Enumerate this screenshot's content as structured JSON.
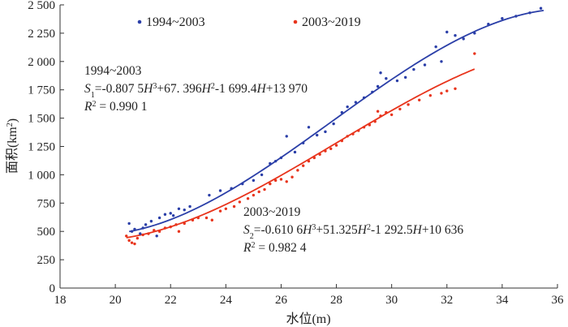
{
  "chart_data": {
    "type": "scatter",
    "xlabel": "水位(m)",
    "ylabel_main": "面积(km",
    "ylabel_sup": "2",
    "ylabel_close": ")",
    "xlim": [
      18,
      36
    ],
    "ylim": [
      0,
      2500
    ],
    "xticks": [
      18,
      20,
      22,
      24,
      26,
      28,
      30,
      32,
      34,
      36
    ],
    "yticks": [
      0,
      250,
      500,
      750,
      1000,
      1250,
      1500,
      1750,
      2000,
      2250,
      2500
    ],
    "ytick_labels": [
      "0",
      "250",
      "500",
      "750",
      "1 000",
      "1 250",
      "1 500",
      "1 750",
      "2 000",
      "2 250",
      "2 500"
    ],
    "grid": false,
    "legend_position": "top",
    "series": [
      {
        "name": "1994~2003",
        "color": "#2b3fa8",
        "marker": "dot",
        "fit_coefficients": [
          -0.8075,
          67.396,
          -1699.4,
          13970
        ],
        "fit_range": [
          20.5,
          35.5
        ],
        "points": [
          [
            20.5,
            570
          ],
          [
            20.6,
            500
          ],
          [
            20.7,
            520
          ],
          [
            20.9,
            480
          ],
          [
            21.0,
            530
          ],
          [
            21.1,
            560
          ],
          [
            21.3,
            590
          ],
          [
            21.5,
            460
          ],
          [
            21.6,
            620
          ],
          [
            21.8,
            650
          ],
          [
            22.0,
            660
          ],
          [
            22.1,
            640
          ],
          [
            22.3,
            700
          ],
          [
            22.5,
            690
          ],
          [
            22.7,
            720
          ],
          [
            23.4,
            820
          ],
          [
            23.8,
            860
          ],
          [
            24.2,
            880
          ],
          [
            24.6,
            920
          ],
          [
            25.0,
            950
          ],
          [
            25.3,
            1000
          ],
          [
            25.6,
            1100
          ],
          [
            25.8,
            1120
          ],
          [
            26.0,
            1150
          ],
          [
            26.2,
            1340
          ],
          [
            26.5,
            1200
          ],
          [
            26.8,
            1280
          ],
          [
            27.0,
            1420
          ],
          [
            27.3,
            1350
          ],
          [
            27.6,
            1380
          ],
          [
            27.9,
            1450
          ],
          [
            28.2,
            1550
          ],
          [
            28.4,
            1600
          ],
          [
            28.7,
            1640
          ],
          [
            29.0,
            1680
          ],
          [
            29.3,
            1730
          ],
          [
            29.5,
            1780
          ],
          [
            29.6,
            1900
          ],
          [
            29.8,
            1850
          ],
          [
            30.2,
            1830
          ],
          [
            30.5,
            1860
          ],
          [
            30.8,
            1930
          ],
          [
            31.2,
            1970
          ],
          [
            31.6,
            2130
          ],
          [
            31.8,
            2000
          ],
          [
            32.0,
            2260
          ],
          [
            32.3,
            2230
          ],
          [
            32.6,
            2200
          ],
          [
            33.0,
            2250
          ],
          [
            33.5,
            2330
          ],
          [
            34.0,
            2380
          ],
          [
            34.5,
            2400
          ],
          [
            35.0,
            2430
          ],
          [
            35.4,
            2470
          ]
        ]
      },
      {
        "name": "2003~2019",
        "color": "#e8341c",
        "marker": "dot",
        "fit_coefficients": [
          -0.6106,
          51.325,
          -1292.5,
          10636
        ],
        "fit_range": [
          20.4,
          33.0
        ],
        "points": [
          [
            20.4,
            460
          ],
          [
            20.5,
            420
          ],
          [
            20.6,
            400
          ],
          [
            20.7,
            390
          ],
          [
            20.8,
            440
          ],
          [
            21.0,
            470
          ],
          [
            21.2,
            480
          ],
          [
            21.4,
            510
          ],
          [
            21.6,
            500
          ],
          [
            21.8,
            530
          ],
          [
            22.0,
            540
          ],
          [
            22.2,
            560
          ],
          [
            22.3,
            500
          ],
          [
            22.5,
            570
          ],
          [
            22.8,
            600
          ],
          [
            23.0,
            620
          ],
          [
            23.3,
            620
          ],
          [
            23.5,
            600
          ],
          [
            23.8,
            680
          ],
          [
            24.0,
            700
          ],
          [
            24.3,
            720
          ],
          [
            24.5,
            760
          ],
          [
            24.8,
            790
          ],
          [
            25.0,
            820
          ],
          [
            25.2,
            850
          ],
          [
            25.4,
            870
          ],
          [
            25.6,
            920
          ],
          [
            25.8,
            950
          ],
          [
            26.0,
            960
          ],
          [
            26.2,
            940
          ],
          [
            26.4,
            980
          ],
          [
            26.6,
            1040
          ],
          [
            26.8,
            1080
          ],
          [
            27.0,
            1120
          ],
          [
            27.2,
            1150
          ],
          [
            27.4,
            1180
          ],
          [
            27.6,
            1210
          ],
          [
            27.8,
            1230
          ],
          [
            28.0,
            1260
          ],
          [
            28.2,
            1300
          ],
          [
            28.4,
            1340
          ],
          [
            28.6,
            1360
          ],
          [
            28.8,
            1390
          ],
          [
            29.0,
            1420
          ],
          [
            29.2,
            1440
          ],
          [
            29.4,
            1470
          ],
          [
            29.5,
            1560
          ],
          [
            29.6,
            1520
          ],
          [
            29.8,
            1550
          ],
          [
            30.0,
            1530
          ],
          [
            30.3,
            1580
          ],
          [
            30.6,
            1620
          ],
          [
            31.0,
            1660
          ],
          [
            31.4,
            1700
          ],
          [
            31.8,
            1720
          ],
          [
            32.0,
            1740
          ],
          [
            32.3,
            1760
          ],
          [
            33.0,
            2070
          ]
        ]
      }
    ],
    "legend": [
      {
        "label": "1994~2003",
        "color": "#2b3fa8"
      },
      {
        "label": "2003~2019",
        "color": "#e8341c"
      }
    ],
    "annotations": {
      "eq1": {
        "period": "1994~2003",
        "s_var": "S",
        "s_sub": "1",
        "eq_part1": "=-0.807 5",
        "h1": "H",
        "pow1": "3",
        "eq_part2": "+67. 396",
        "h2": "H",
        "pow2": "2",
        "eq_part3": "-1 699.4",
        "h3": "H",
        "eq_part4": "+13 970",
        "r_var": "R",
        "r_pow": "2",
        "r_value": " = 0.990 1"
      },
      "eq2": {
        "period": "2003~2019",
        "s_var": "S",
        "s_sub": "2",
        "eq_part1": "=-0.610 6",
        "h1": "H",
        "pow1": "3",
        "eq_part2": "+51.325",
        "h2": "H",
        "pow2": "2",
        "eq_part3": "-1 292.5",
        "h3": "H",
        "eq_part4": "+10 636",
        "r_var": "R",
        "r_pow": "2",
        "r_value": " = 0.982 4"
      }
    }
  }
}
